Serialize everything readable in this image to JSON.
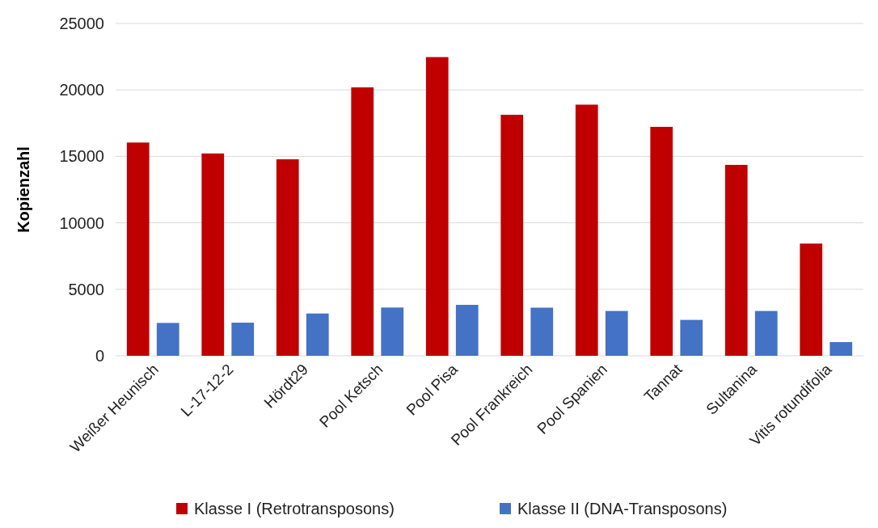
{
  "chart_data": {
    "type": "bar",
    "ylabel": "Kopienzahl",
    "categories": [
      "Weißer Heunisch",
      "L-17-12-2",
      "Hördt29",
      "Pool Ketsch",
      "Pool Pisa",
      "Pool Frankreich",
      "Pool Spanien",
      "Tannat",
      "Sultanina",
      "Vitis rotundifolia"
    ],
    "series": [
      {
        "name": "Klasse I (Retrotransposons)",
        "color": "#c00000",
        "values": [
          16040,
          15220,
          14780,
          20190,
          22470,
          18130,
          18890,
          17220,
          14360,
          8440
        ]
      },
      {
        "name": "Klasse II (DNA-Transposons)",
        "color": "#4472c4",
        "values": [
          2470,
          2490,
          3180,
          3630,
          3830,
          3620,
          3370,
          2700,
          3370,
          1030
        ]
      }
    ],
    "ylim": [
      0,
      25000
    ],
    "yticks": [
      0,
      5000,
      10000,
      15000,
      20000,
      25000
    ],
    "grid": "y",
    "legend": "bottom"
  }
}
